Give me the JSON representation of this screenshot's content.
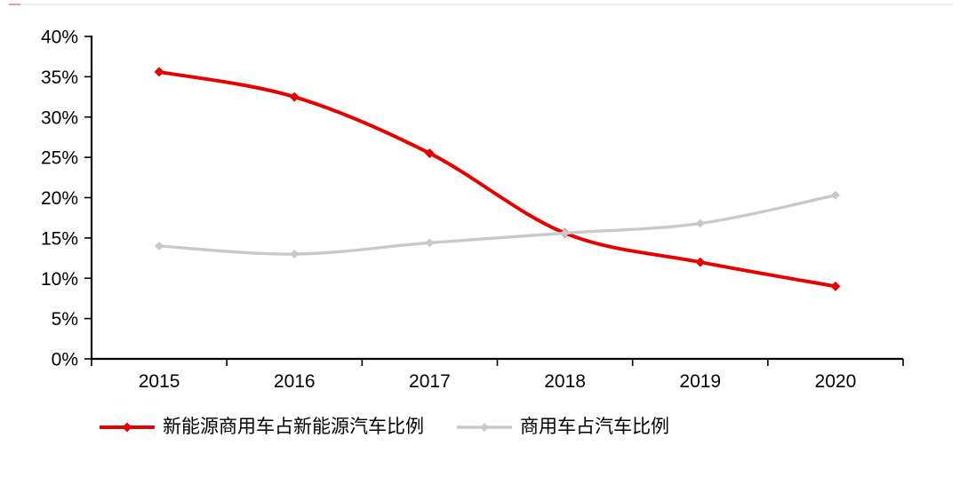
{
  "chart_data": {
    "type": "line",
    "title": "",
    "xlabel": "",
    "ylabel": "",
    "categories": [
      "2015",
      "2016",
      "2017",
      "2018",
      "2019",
      "2020"
    ],
    "series": [
      {
        "name": "新能源商用车占新能源汽车比例",
        "color": "#e60000",
        "marker": "diamond",
        "line_width": 4,
        "marker_size": 5.5,
        "values": [
          35.6,
          32.5,
          25.5,
          15.6,
          12.0,
          9.0
        ]
      },
      {
        "name": "商用车占汽车比例",
        "color": "#c9c9c9",
        "marker": "diamond",
        "line_width": 3.4,
        "marker_size": 5,
        "values": [
          14.0,
          13.0,
          14.4,
          15.6,
          16.8,
          20.3
        ]
      }
    ],
    "ylim": [
      0,
      40
    ],
    "ytick_step": 5,
    "ytick_labels": [
      "0%",
      "5%",
      "10%",
      "15%",
      "20%",
      "25%",
      "30%",
      "35%",
      "40%"
    ],
    "grid": false,
    "smooth_lines": true,
    "legend_position": "bottom-center",
    "axis_color": "#000000",
    "text_color": "#000000",
    "background_color": "#ffffff"
  }
}
